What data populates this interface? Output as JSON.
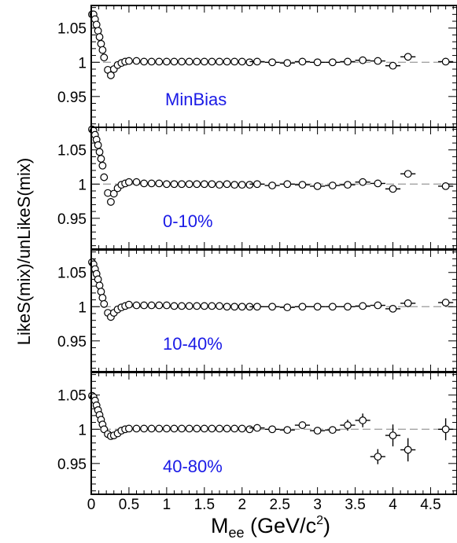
{
  "chart_data": {
    "type": "scatter",
    "xlabel": "M",
    "xlabel_sub": "ee",
    "xlabel_unit_pre": " (GeV/c",
    "xlabel_unit_sup": "2",
    "xlabel_unit_post": ")",
    "ylabel": "LikeS(mix)/unLikeS(mix)",
    "xlim": [
      0,
      4.85
    ],
    "ylim": [
      0.905,
      1.083
    ],
    "x_ticks": [
      "0",
      "0.5",
      "1",
      "1.5",
      "2",
      "2.5",
      "3",
      "3.5",
      "4",
      "4.5"
    ],
    "y_ticks": [
      "0.95",
      "1",
      "1.05"
    ],
    "reference_line": 1.0,
    "label_color": "#1a1ae6",
    "panels": [
      {
        "label": "MinBias",
        "points": [
          [
            0.01,
            1.07
          ],
          [
            0.03,
            1.07
          ],
          [
            0.05,
            1.063
          ],
          [
            0.07,
            1.055
          ],
          [
            0.09,
            1.046
          ],
          [
            0.11,
            1.037
          ],
          [
            0.13,
            1.027
          ],
          [
            0.15,
            1.018
          ],
          [
            0.17,
            1.007
          ],
          [
            0.22,
            0.989
          ],
          [
            0.26,
            0.981
          ],
          [
            0.3,
            0.99
          ],
          [
            0.35,
            0.996
          ],
          [
            0.4,
            0.999
          ],
          [
            0.45,
            1.001
          ],
          [
            0.5,
            1.002
          ],
          [
            0.6,
            1.002
          ],
          [
            0.7,
            1.001
          ],
          [
            0.8,
            1.001
          ],
          [
            0.9,
            1.001
          ],
          [
            1.0,
            1.001
          ],
          [
            1.1,
            1.001
          ],
          [
            1.2,
            1.001
          ],
          [
            1.3,
            1.001
          ],
          [
            1.4,
            1.001
          ],
          [
            1.5,
            1.001
          ],
          [
            1.6,
            1.001
          ],
          [
            1.7,
            1.001
          ],
          [
            1.8,
            1.001
          ],
          [
            1.9,
            1.001
          ],
          [
            2.0,
            1.001
          ],
          [
            2.1,
            1.0
          ],
          [
            2.2,
            1.001
          ],
          [
            2.4,
            1.0
          ],
          [
            2.6,
            0.999
          ],
          [
            2.8,
            1.001
          ],
          [
            3.0,
            1.0
          ],
          [
            3.2,
            1.0
          ],
          [
            3.4,
            1.001
          ],
          [
            3.6,
            1.003
          ],
          [
            3.8,
            1.002
          ],
          [
            4.0,
            0.995
          ],
          [
            4.2,
            1.008
          ],
          [
            4.7,
            1.001
          ]
        ]
      },
      {
        "label": "0-10%",
        "points": [
          [
            0.01,
            1.08
          ],
          [
            0.03,
            1.078
          ],
          [
            0.05,
            1.072
          ],
          [
            0.07,
            1.065
          ],
          [
            0.09,
            1.057
          ],
          [
            0.11,
            1.047
          ],
          [
            0.13,
            1.037
          ],
          [
            0.15,
            1.027
          ],
          [
            0.17,
            1.01
          ],
          [
            0.22,
            0.987
          ],
          [
            0.26,
            0.974
          ],
          [
            0.3,
            0.986
          ],
          [
            0.35,
            0.994
          ],
          [
            0.4,
            0.999
          ],
          [
            0.45,
            1.001
          ],
          [
            0.5,
            1.003
          ],
          [
            0.6,
            1.003
          ],
          [
            0.7,
            1.001
          ],
          [
            0.8,
            1.001
          ],
          [
            0.9,
            1.001
          ],
          [
            1.0,
            1.0
          ],
          [
            1.1,
            1.0
          ],
          [
            1.2,
            1.0
          ],
          [
            1.3,
            1.0
          ],
          [
            1.4,
            1.0
          ],
          [
            1.5,
            1.0
          ],
          [
            1.6,
            1.0
          ],
          [
            1.7,
            0.999
          ],
          [
            1.8,
            1.0
          ],
          [
            1.9,
            0.999
          ],
          [
            2.0,
            0.999
          ],
          [
            2.1,
            0.999
          ],
          [
            2.2,
            1.0
          ],
          [
            2.4,
            0.998
          ],
          [
            2.6,
            1.0
          ],
          [
            2.8,
            0.999
          ],
          [
            3.0,
            0.997
          ],
          [
            3.2,
            0.998
          ],
          [
            3.4,
            0.999
          ],
          [
            3.6,
            1.003
          ],
          [
            3.8,
            1.001
          ],
          [
            4.0,
            0.993
          ],
          [
            4.2,
            1.015
          ],
          [
            4.7,
            0.997
          ]
        ]
      },
      {
        "label": "10-40%",
        "points": [
          [
            0.01,
            1.065
          ],
          [
            0.03,
            1.062
          ],
          [
            0.05,
            1.055
          ],
          [
            0.07,
            1.048
          ],
          [
            0.09,
            1.04
          ],
          [
            0.11,
            1.031
          ],
          [
            0.13,
            1.022
          ],
          [
            0.15,
            1.013
          ],
          [
            0.17,
            1.004
          ],
          [
            0.22,
            0.991
          ],
          [
            0.26,
            0.985
          ],
          [
            0.3,
            0.991
          ],
          [
            0.35,
            0.996
          ],
          [
            0.4,
            0.999
          ],
          [
            0.45,
            1.001
          ],
          [
            0.5,
            1.003
          ],
          [
            0.6,
            1.002
          ],
          [
            0.7,
            1.002
          ],
          [
            0.8,
            1.002
          ],
          [
            0.9,
            1.002
          ],
          [
            1.0,
            1.002
          ],
          [
            1.1,
            1.001
          ],
          [
            1.2,
            1.001
          ],
          [
            1.3,
            1.001
          ],
          [
            1.4,
            1.001
          ],
          [
            1.5,
            1.001
          ],
          [
            1.6,
            1.001
          ],
          [
            1.7,
            1.001
          ],
          [
            1.8,
            1.0
          ],
          [
            1.9,
            1.0
          ],
          [
            2.0,
            1.0
          ],
          [
            2.1,
            1.0
          ],
          [
            2.2,
            1.0
          ],
          [
            2.4,
            1.0
          ],
          [
            2.6,
            0.999
          ],
          [
            2.8,
            1.0
          ],
          [
            3.0,
            1.0
          ],
          [
            3.2,
            1.0
          ],
          [
            3.4,
            1.0
          ],
          [
            3.6,
            1.001
          ],
          [
            3.8,
            1.002
          ],
          [
            4.0,
            0.997
          ],
          [
            4.2,
            1.005
          ],
          [
            4.7,
            1.006
          ]
        ]
      },
      {
        "label": "40-80%",
        "points": [
          [
            0.01,
            1.049
          ],
          [
            0.03,
            1.047
          ],
          [
            0.05,
            1.042
          ],
          [
            0.07,
            1.035
          ],
          [
            0.09,
            1.028
          ],
          [
            0.11,
            1.021
          ],
          [
            0.13,
            1.014
          ],
          [
            0.15,
            1.007
          ],
          [
            0.17,
            1.0
          ],
          [
            0.22,
            0.993
          ],
          [
            0.26,
            0.99
          ],
          [
            0.3,
            0.991
          ],
          [
            0.35,
            0.994
          ],
          [
            0.4,
            0.998
          ],
          [
            0.45,
            1.0
          ],
          [
            0.5,
            1.001
          ],
          [
            0.6,
            1.001
          ],
          [
            0.7,
            1.001
          ],
          [
            0.8,
            1.001
          ],
          [
            0.9,
            1.001
          ],
          [
            1.0,
            1.001
          ],
          [
            1.1,
            1.001
          ],
          [
            1.2,
            1.001
          ],
          [
            1.3,
            1.001
          ],
          [
            1.4,
            1.001
          ],
          [
            1.5,
            1.001
          ],
          [
            1.6,
            1.001
          ],
          [
            1.7,
            1.001
          ],
          [
            1.8,
            1.001
          ],
          [
            1.9,
            1.001
          ],
          [
            2.0,
            1.001
          ],
          [
            2.1,
            1.0
          ],
          [
            2.2,
            1.002
          ],
          [
            2.4,
            1.0
          ],
          [
            2.6,
            0.999
          ],
          [
            2.8,
            1.006
          ],
          [
            3.0,
            0.998
          ],
          [
            3.2,
            0.999
          ],
          [
            3.4,
            1.006
          ],
          [
            3.6,
            1.013
          ],
          [
            3.8,
            0.96
          ],
          [
            4.0,
            0.991
          ],
          [
            4.2,
            0.97
          ],
          [
            4.7,
            1.0
          ]
        ],
        "yerr": {
          "3.40": 0.008,
          "3.60": 0.01,
          "3.80": 0.011,
          "4.00": 0.016,
          "4.20": 0.017,
          "4.70": 0.016
        }
      }
    ]
  }
}
